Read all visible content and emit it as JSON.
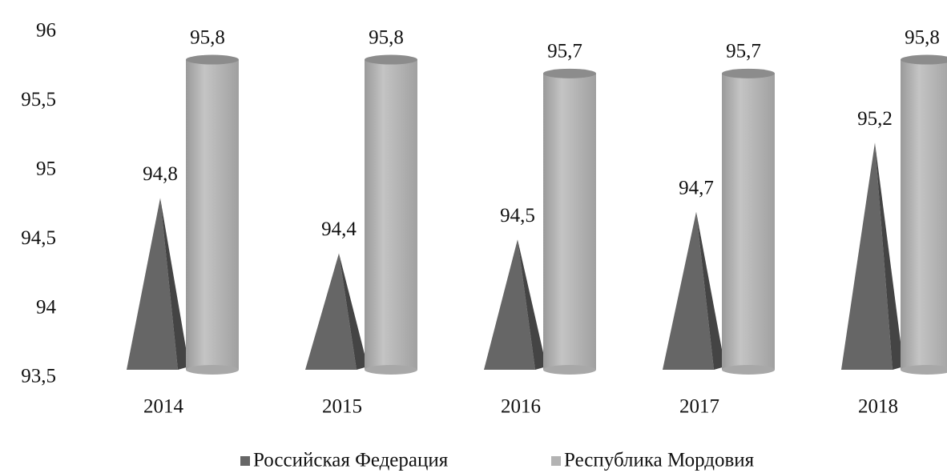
{
  "chart_data": {
    "type": "bar",
    "categories": [
      "2014",
      "2015",
      "2016",
      "2017",
      "2018"
    ],
    "series": [
      {
        "name": "Российская Федерация",
        "color": "#666666",
        "values": [
          94.8,
          94.4,
          94.5,
          94.7,
          95.2
        ],
        "value_labels": [
          "94,8",
          "94,4",
          "94,5",
          "94,7",
          "95,2"
        ]
      },
      {
        "name": "Республика Мордовия",
        "color": "#b3b3b3",
        "values": [
          95.8,
          95.8,
          95.7,
          95.7,
          95.8
        ],
        "value_labels": [
          "95,8",
          "95,8",
          "95,7",
          "95,7",
          "95,8"
        ]
      }
    ],
    "ylim": [
      93.5,
      96
    ],
    "yticks": [
      {
        "value": 93.5,
        "label": "93,5"
      },
      94,
      {
        "value": 94.5,
        "label": "94,5"
      },
      95,
      {
        "value": 95.5,
        "label": "95,5"
      },
      96
    ],
    "grid": false,
    "legend": "bottom"
  }
}
